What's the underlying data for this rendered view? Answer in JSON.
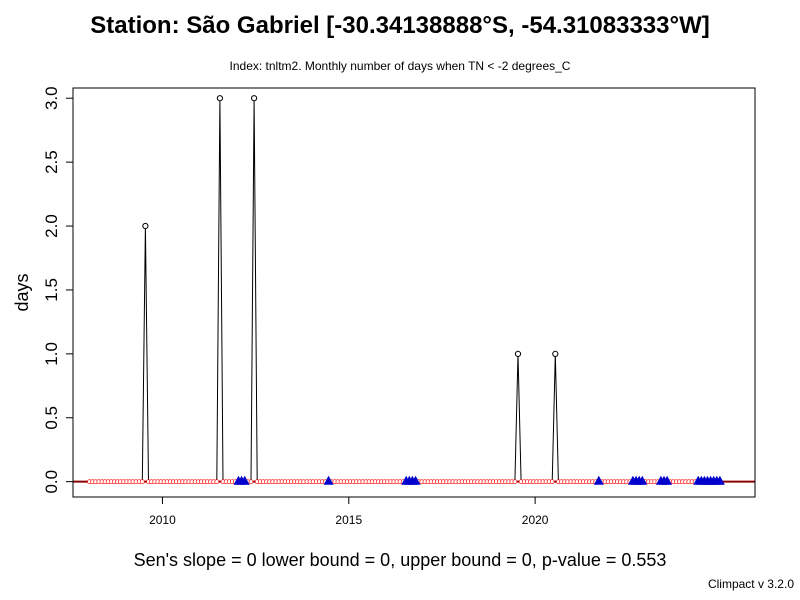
{
  "title": "Station: São Gabriel [-30.34138888°S, -54.31083333°W]",
  "subtitle": "Index: tnltm2. Monthly number of days when TN < -2 degrees_C",
  "footer": "Sen's slope = 0   lower bound = 0,   upper bound = 0,   p-value = 0.553",
  "version": "Climpact v 3.2.0",
  "colors": {
    "series": "#000000",
    "missing_marker": "#0000cd",
    "trend_line": "#8b0000",
    "zero_marker": "#ff0000",
    "axis": "#000000"
  },
  "chart_data": {
    "type": "line",
    "title": "Station: São Gabriel [-30.34138888°S, -54.31083333°W]",
    "subtitle": "Index: tnltm2. Monthly number of days when TN < -2 degrees_C",
    "xlabel": "",
    "ylabel": "days",
    "xlim": [
      2007.6,
      2025.9
    ],
    "ylim": [
      -0.12,
      3.08
    ],
    "xticks": [
      2010,
      2015,
      2020
    ],
    "yticks": [
      0.0,
      0.5,
      1.0,
      1.5,
      2.0,
      2.5,
      3.0
    ],
    "ytick_labels": [
      "0.0",
      "0.5",
      "1.0",
      "1.5",
      "2.0",
      "2.5",
      "3.0"
    ],
    "grid": false,
    "start_year": 2008,
    "end_year": 2024,
    "nonzero_points": [
      {
        "x": 2009.54,
        "y": 2
      },
      {
        "x": 2011.54,
        "y": 3
      },
      {
        "x": 2012.46,
        "y": 3
      },
      {
        "x": 2019.54,
        "y": 1
      },
      {
        "x": 2020.54,
        "y": 1
      }
    ],
    "missing_points": [
      2012.04,
      2012.12,
      2012.21,
      2014.46,
      2016.54,
      2016.62,
      2016.71,
      2016.79,
      2021.71,
      2022.62,
      2022.71,
      2022.79,
      2022.87,
      2023.38,
      2023.46,
      2023.54,
      2024.38,
      2024.46,
      2024.54,
      2024.62,
      2024.71,
      2024.79,
      2024.87,
      2024.96
    ],
    "trend": {
      "slope": 0,
      "intercept": 0
    }
  }
}
